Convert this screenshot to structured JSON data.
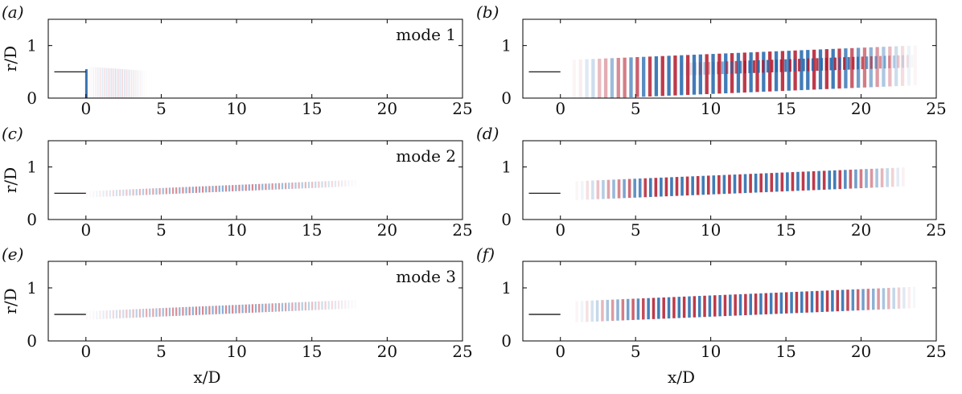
{
  "chart_data": [
    {
      "panel": "(a)",
      "type": "heatmap",
      "mode_label": "mode 1",
      "xlabel": "",
      "ylabel": "r/D",
      "xlim": [
        -2.5,
        25
      ],
      "ylim": [
        0,
        1.5
      ],
      "xticks": [
        0,
        5,
        10,
        15,
        20,
        25
      ],
      "yticks": [
        0,
        1
      ],
      "nozzle": {
        "x": [
          -2.5,
          0
        ],
        "r": 0.5
      }
    },
    {
      "panel": "(b)",
      "type": "heatmap",
      "mode_label": "",
      "xlabel": "",
      "ylabel": "",
      "xlim": [
        -2.5,
        25
      ],
      "ylim": [
        0,
        1.5
      ],
      "xticks": [
        0,
        5,
        10,
        15,
        20,
        25
      ],
      "yticks": [
        0,
        1
      ],
      "nozzle": {
        "x": [
          -2.5,
          0
        ],
        "r": 0.5
      }
    },
    {
      "panel": "(c)",
      "type": "heatmap",
      "mode_label": "mode 2",
      "xlabel": "",
      "ylabel": "r/D",
      "xlim": [
        -2.5,
        25
      ],
      "ylim": [
        0,
        1.5
      ],
      "xticks": [
        0,
        5,
        10,
        15,
        20,
        25
      ],
      "yticks": [
        0,
        1
      ],
      "nozzle": {
        "x": [
          -2.5,
          0
        ],
        "r": 0.5
      }
    },
    {
      "panel": "(d)",
      "type": "heatmap",
      "mode_label": "",
      "xlabel": "",
      "ylabel": "",
      "xlim": [
        -2.5,
        25
      ],
      "ylim": [
        0,
        1.5
      ],
      "xticks": [
        0,
        5,
        10,
        15,
        20,
        25
      ],
      "yticks": [
        0,
        1
      ],
      "nozzle": {
        "x": [
          -2.5,
          0
        ],
        "r": 0.5
      }
    },
    {
      "panel": "(e)",
      "type": "heatmap",
      "mode_label": "mode 3",
      "xlabel": "x/D",
      "ylabel": "r/D",
      "xlim": [
        -2.5,
        25
      ],
      "ylim": [
        0,
        1.5
      ],
      "xticks": [
        0,
        5,
        10,
        15,
        20,
        25
      ],
      "yticks": [
        0,
        1
      ],
      "nozzle": {
        "x": [
          -2.5,
          0
        ],
        "r": 0.5
      }
    },
    {
      "panel": "(f)",
      "type": "heatmap",
      "mode_label": "",
      "xlabel": "x/D",
      "ylabel": "",
      "xlim": [
        -2.5,
        25
      ],
      "ylim": [
        0,
        1.5
      ],
      "xticks": [
        0,
        5,
        10,
        15,
        20,
        25
      ],
      "yticks": [
        0,
        1
      ],
      "nozzle": {
        "x": [
          -2.5,
          0
        ],
        "r": 0.5
      }
    }
  ],
  "colors": {
    "positive": "#b2182b",
    "negative": "#2166ac",
    "nozzle": "#000000",
    "frame": "#000000"
  }
}
